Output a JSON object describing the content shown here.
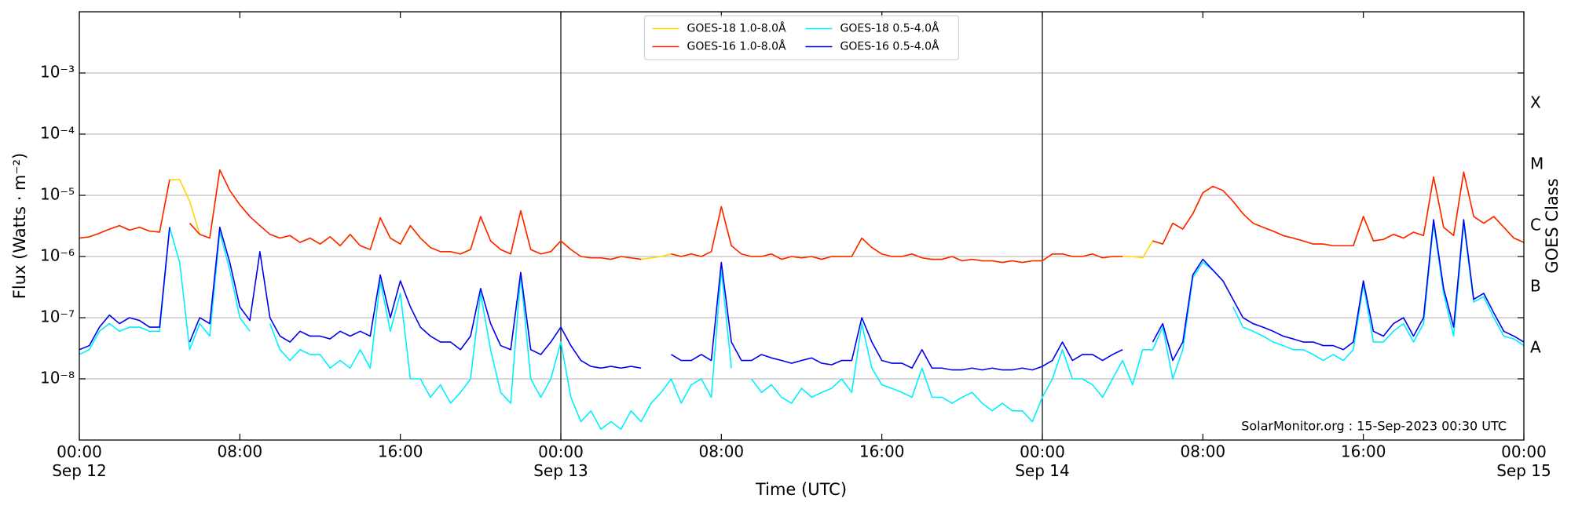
{
  "chart_data": {
    "type": "line",
    "xlabel": "Time (UTC)",
    "ylabel": "Flux (Watts · m⁻²)",
    "y2label": "GOES Class",
    "annotation": "SolarMonitor.org : 15-Sep-2023 00:30 UTC",
    "yscale": "log",
    "grid": true,
    "day_lines": true,
    "legend": "upper center",
    "xlim": [
      0,
      72
    ],
    "xticks": [
      {
        "value": 0,
        "label": "00:00\nSep 12"
      },
      {
        "value": 8,
        "label": "08:00"
      },
      {
        "value": 16,
        "label": "16:00"
      },
      {
        "value": 24,
        "label": "00:00\nSep 13"
      },
      {
        "value": 32,
        "label": "08:00"
      },
      {
        "value": 40,
        "label": "16:00"
      },
      {
        "value": 48,
        "label": "00:00\nSep 14"
      },
      {
        "value": 56,
        "label": "08:00"
      },
      {
        "value": 64,
        "label": "16:00"
      },
      {
        "value": 72,
        "label": "00:00\nSep 15"
      }
    ],
    "ylim": [
      1e-09,
      0.01
    ],
    "yticks": [
      {
        "value": 1e-08,
        "label": "10⁻⁸"
      },
      {
        "value": 1e-07,
        "label": "10⁻⁷"
      },
      {
        "value": 1e-06,
        "label": "10⁻⁶"
      },
      {
        "value": 1e-05,
        "label": "10⁻⁵"
      },
      {
        "value": 0.0001,
        "label": "10⁻⁴"
      },
      {
        "value": 0.001,
        "label": "10⁻³"
      }
    ],
    "y2lim": [
      1e-09,
      0.01
    ],
    "y2ticks": [
      {
        "value": 3.16e-08,
        "label": "A"
      },
      {
        "value": 3.16e-07,
        "label": "B"
      },
      {
        "value": 3.16e-06,
        "label": "C"
      },
      {
        "value": 3.16e-05,
        "label": "M"
      },
      {
        "value": 0.000316,
        "label": "X"
      }
    ],
    "x": [
      0,
      0.5,
      1,
      1.5,
      2,
      2.5,
      3,
      3.5,
      4,
      4.5,
      5,
      5.5,
      6,
      6.5,
      7,
      7.5,
      8,
      8.5,
      9,
      9.5,
      10,
      10.5,
      11,
      11.5,
      12,
      12.5,
      13,
      13.5,
      14,
      14.5,
      15,
      15.5,
      16,
      16.5,
      17,
      17.5,
      18,
      18.5,
      19,
      19.5,
      20,
      20.5,
      21,
      21.5,
      22,
      22.5,
      23,
      23.5,
      24,
      24.5,
      25,
      25.5,
      26,
      26.5,
      27,
      27.5,
      28,
      28.5,
      29,
      29.5,
      30,
      30.5,
      31,
      31.5,
      32,
      32.5,
      33,
      33.5,
      34,
      34.5,
      35,
      35.5,
      36,
      36.5,
      37,
      37.5,
      38,
      38.5,
      39,
      39.5,
      40,
      40.5,
      41,
      41.5,
      42,
      42.5,
      43,
      43.5,
      44,
      44.5,
      45,
      45.5,
      46,
      46.5,
      47,
      47.5,
      48,
      48.5,
      49,
      49.5,
      50,
      50.5,
      51,
      51.5,
      52,
      52.5,
      53,
      53.5,
      54,
      54.5,
      55,
      55.5,
      56,
      56.5,
      57,
      57.5,
      58,
      58.5,
      59,
      59.5,
      60,
      60.5,
      61,
      61.5,
      62,
      62.5,
      63,
      63.5,
      64,
      64.5,
      65,
      65.5,
      66,
      66.5,
      67,
      67.5,
      68,
      68.5,
      69,
      69.5,
      70,
      70.5,
      71,
      71.5,
      72
    ],
    "series": [
      {
        "name": "GOES-18 1.0-8.0Å",
        "color": "#ffd700",
        "values": [
          2e-06,
          2.1e-06,
          2.4e-06,
          2.8e-06,
          3.2e-06,
          2.7e-06,
          3e-06,
          2.6e-06,
          2.5e-06,
          1.8e-05,
          1.8e-05,
          8e-06,
          2.3e-06,
          2e-06,
          2.6e-05,
          1.2e-05,
          7e-06,
          4.5e-06,
          null,
          2.3e-06,
          2e-06,
          2.2e-06,
          1.7e-06,
          2e-06,
          1.6e-06,
          2.1e-06,
          1.5e-06,
          2.3e-06,
          1.5e-06,
          1.3e-06,
          4.3e-06,
          2e-06,
          1.6e-06,
          3.2e-06,
          2e-06,
          1.4e-06,
          1.2e-06,
          1.2e-06,
          1.1e-06,
          1.3e-06,
          4.5e-06,
          1.8e-06,
          1.3e-06,
          1.1e-06,
          5.6e-06,
          1.3e-06,
          1.1e-06,
          1.2e-06,
          1.8e-06,
          1.3e-06,
          1e-06,
          9.5e-07,
          9.5e-07,
          9e-07,
          1e-06,
          9.5e-07,
          9e-07,
          9.5e-07,
          1e-06,
          1.1e-06,
          1e-06,
          1.1e-06,
          1e-06,
          1.2e-06,
          6.5e-06,
          1.5e-06,
          null,
          1e-06,
          1e-06,
          1.1e-06,
          9e-07,
          1e-06,
          9.5e-07,
          1e-06,
          9e-07,
          1e-06,
          1e-06,
          1e-06,
          2e-06,
          1.4e-06,
          1.1e-06,
          1e-06,
          1e-06,
          1.1e-06,
          9.5e-07,
          9e-07,
          9e-07,
          1e-06,
          8.5e-07,
          9e-07,
          8.5e-07,
          8.5e-07,
          8e-07,
          8.5e-07,
          8e-07,
          8.5e-07,
          8.5e-07,
          1.1e-06,
          1.1e-06,
          1e-06,
          1e-06,
          1.1e-06,
          9.5e-07,
          1e-06,
          1e-06,
          1e-06,
          9.5e-07,
          1.8e-06,
          1.6e-06,
          3.5e-06,
          2.8e-06,
          5e-06,
          1.1e-05,
          1.4e-05,
          null,
          8e-06,
          5e-06,
          3.5e-06,
          3e-06,
          2.6e-06,
          2.2e-06,
          2e-06,
          1.8e-06,
          1.6e-06,
          1.6e-06,
          1.5e-06,
          1.5e-06,
          1.5e-06,
          4.5e-06,
          1.8e-06,
          1.9e-06,
          2.3e-06,
          2e-06,
          2.5e-06,
          2.2e-06,
          2e-05,
          3e-06,
          2.2e-06,
          2.4e-05,
          4.5e-06,
          3.5e-06,
          4.5e-06,
          3e-06,
          2e-06,
          1.7e-06
        ]
      },
      {
        "name": "GOES-16 1.0-8.0Å",
        "color": "#ff2200",
        "values": [
          2e-06,
          2.1e-06,
          2.4e-06,
          2.8e-06,
          3.2e-06,
          2.7e-06,
          3e-06,
          2.6e-06,
          2.5e-06,
          1.8e-05,
          null,
          3.5e-06,
          2.3e-06,
          2e-06,
          2.6e-05,
          1.2e-05,
          7e-06,
          4.5e-06,
          3.2e-06,
          2.3e-06,
          2e-06,
          2.2e-06,
          1.7e-06,
          2e-06,
          1.6e-06,
          2.1e-06,
          1.5e-06,
          2.3e-06,
          1.5e-06,
          1.3e-06,
          4.3e-06,
          2e-06,
          1.6e-06,
          3.2e-06,
          2e-06,
          1.4e-06,
          1.2e-06,
          1.2e-06,
          1.1e-06,
          1.3e-06,
          4.5e-06,
          1.8e-06,
          1.3e-06,
          1.1e-06,
          5.6e-06,
          1.3e-06,
          1.1e-06,
          1.2e-06,
          1.8e-06,
          1.3e-06,
          1e-06,
          9.5e-07,
          9.5e-07,
          9e-07,
          1e-06,
          9.5e-07,
          9e-07,
          null,
          null,
          1.1e-06,
          1e-06,
          1.1e-06,
          1e-06,
          1.2e-06,
          6.5e-06,
          1.5e-06,
          1.1e-06,
          1e-06,
          1e-06,
          1.1e-06,
          9e-07,
          1e-06,
          9.5e-07,
          1e-06,
          9e-07,
          1e-06,
          1e-06,
          1e-06,
          2e-06,
          1.4e-06,
          1.1e-06,
          1e-06,
          1e-06,
          1.1e-06,
          9.5e-07,
          9e-07,
          9e-07,
          1e-06,
          8.5e-07,
          9e-07,
          8.5e-07,
          8.5e-07,
          8e-07,
          8.5e-07,
          8e-07,
          8.5e-07,
          8.5e-07,
          1.1e-06,
          1.1e-06,
          1e-06,
          1e-06,
          1.1e-06,
          9.5e-07,
          1e-06,
          1e-06,
          null,
          null,
          1.8e-06,
          1.6e-06,
          3.5e-06,
          2.8e-06,
          5e-06,
          1.1e-05,
          1.4e-05,
          1.2e-05,
          8e-06,
          5e-06,
          3.5e-06,
          3e-06,
          2.6e-06,
          2.2e-06,
          2e-06,
          1.8e-06,
          1.6e-06,
          1.6e-06,
          1.5e-06,
          1.5e-06,
          1.5e-06,
          4.5e-06,
          1.8e-06,
          1.9e-06,
          2.3e-06,
          2e-06,
          2.5e-06,
          2.2e-06,
          2e-05,
          3e-06,
          2.2e-06,
          2.4e-05,
          4.5e-06,
          3.5e-06,
          4.5e-06,
          3e-06,
          2e-06,
          1.7e-06
        ]
      },
      {
        "name": "GOES-18 0.5-4.0Å",
        "color": "#00f0ff",
        "values": [
          2.5e-08,
          3e-08,
          6e-08,
          8e-08,
          6e-08,
          7e-08,
          7e-08,
          6e-08,
          6e-08,
          3e-06,
          8e-07,
          3e-08,
          8e-08,
          5e-08,
          2.5e-06,
          6e-07,
          1e-07,
          6e-08,
          null,
          8e-08,
          3e-08,
          2e-08,
          3e-08,
          2.5e-08,
          2.5e-08,
          1.5e-08,
          2e-08,
          1.5e-08,
          3e-08,
          1.5e-08,
          4e-07,
          6e-08,
          2.5e-07,
          1e-08,
          1e-08,
          5e-09,
          8e-09,
          4e-09,
          6e-09,
          1e-08,
          2.5e-07,
          3e-08,
          6e-09,
          4e-09,
          5e-07,
          1e-08,
          5e-09,
          1e-08,
          4e-08,
          5e-09,
          2e-09,
          3e-09,
          1.5e-09,
          2e-09,
          1.5e-09,
          3e-09,
          2e-09,
          4e-09,
          6e-09,
          1e-08,
          4e-09,
          8e-09,
          1e-08,
          5e-09,
          6e-07,
          1.5e-08,
          null,
          1e-08,
          6e-09,
          8e-09,
          5e-09,
          4e-09,
          7e-09,
          5e-09,
          6e-09,
          7e-09,
          1e-08,
          6e-09,
          8e-08,
          1.5e-08,
          8e-09,
          7e-09,
          6e-09,
          5e-09,
          1.5e-08,
          5e-09,
          5e-09,
          4e-09,
          5e-09,
          6e-09,
          4e-09,
          3e-09,
          4e-09,
          3e-09,
          3e-09,
          2e-09,
          5e-09,
          1e-08,
          3e-08,
          1e-08,
          1e-08,
          8e-09,
          5e-09,
          1e-08,
          2e-08,
          8e-09,
          3e-08,
          3e-08,
          7e-08,
          1e-08,
          3e-08,
          4.5e-07,
          8e-07,
          6e-07,
          null,
          1.5e-07,
          7e-08,
          6e-08,
          5e-08,
          4e-08,
          3.5e-08,
          3e-08,
          3e-08,
          2.5e-08,
          2e-08,
          2.5e-08,
          2e-08,
          3e-08,
          3.5e-07,
          4e-08,
          4e-08,
          6e-08,
          8e-08,
          4e-08,
          8e-08,
          3.5e-06,
          2.5e-07,
          5e-08,
          3.5e-06,
          1.8e-07,
          2.2e-07,
          1e-07,
          5e-08,
          4.5e-08,
          3.5e-08
        ]
      },
      {
        "name": "GOES-16 0.5-4.0Å",
        "color": "#0000ee",
        "values": [
          3e-08,
          3.5e-08,
          7e-08,
          1.1e-07,
          8e-08,
          1e-07,
          9e-08,
          7e-08,
          7e-08,
          3e-06,
          null,
          4e-08,
          1e-07,
          8e-08,
          3e-06,
          8e-07,
          1.5e-07,
          9e-08,
          1.2e-06,
          1e-07,
          5e-08,
          4e-08,
          6e-08,
          5e-08,
          5e-08,
          4.5e-08,
          6e-08,
          5e-08,
          6e-08,
          5e-08,
          5e-07,
          1e-07,
          4e-07,
          1.5e-07,
          7e-08,
          5e-08,
          4e-08,
          4e-08,
          3e-08,
          5e-08,
          3e-07,
          8e-08,
          3.5e-08,
          3e-08,
          5.5e-07,
          3e-08,
          2.5e-08,
          4e-08,
          7e-08,
          3.5e-08,
          2e-08,
          1.6e-08,
          1.5e-08,
          1.6e-08,
          1.5e-08,
          1.6e-08,
          1.5e-08,
          null,
          null,
          2.5e-08,
          2e-08,
          2e-08,
          2.5e-08,
          2e-08,
          8e-07,
          4e-08,
          2e-08,
          2e-08,
          2.5e-08,
          2.2e-08,
          2e-08,
          1.8e-08,
          2e-08,
          2.2e-08,
          1.8e-08,
          1.7e-08,
          2e-08,
          2e-08,
          1e-07,
          4e-08,
          2e-08,
          1.8e-08,
          1.8e-08,
          1.5e-08,
          3e-08,
          1.5e-08,
          1.5e-08,
          1.4e-08,
          1.4e-08,
          1.5e-08,
          1.4e-08,
          1.5e-08,
          1.4e-08,
          1.4e-08,
          1.5e-08,
          1.4e-08,
          1.6e-08,
          2e-08,
          4e-08,
          2e-08,
          2.5e-08,
          2.5e-08,
          2e-08,
          2.5e-08,
          3e-08,
          null,
          null,
          4e-08,
          8e-08,
          2e-08,
          4e-08,
          5e-07,
          9e-07,
          6e-07,
          4e-07,
          2e-07,
          1e-07,
          8e-08,
          7e-08,
          6e-08,
          5e-08,
          4.5e-08,
          4e-08,
          4e-08,
          3.5e-08,
          3.5e-08,
          3e-08,
          4e-08,
          4e-07,
          6e-08,
          5e-08,
          8e-08,
          1e-07,
          5e-08,
          1e-07,
          4e-06,
          3e-07,
          7e-08,
          4e-06,
          2e-07,
          2.5e-07,
          1.2e-07,
          6e-08,
          5e-08,
          4e-08
        ]
      }
    ]
  }
}
